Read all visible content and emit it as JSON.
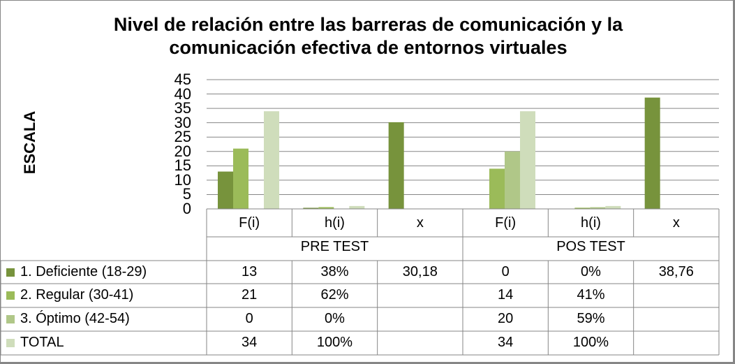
{
  "chart_data": {
    "type": "bar",
    "title_line1": "Nivel de relación entre las barreras de comunicación y la",
    "title_line2": "comunicación efectiva de entornos virtuales",
    "ylabel": "ESCALA",
    "xlabel": "",
    "ylim": [
      0,
      45
    ],
    "yticks": [
      "0",
      "5",
      "10",
      "15",
      "20",
      "25",
      "30",
      "35",
      "40",
      "45"
    ],
    "grid": true,
    "legend": "data-table-left",
    "categories": [
      "F(i)",
      "h(i)",
      "x",
      "F(i)",
      "h(i)",
      "x"
    ],
    "groups": [
      "PRE TEST",
      "POS TEST"
    ],
    "series": [
      {
        "name": "1. Deficiente (18-29)",
        "color": "#77933C",
        "values": [
          13,
          0.38,
          30.18,
          0,
          0,
          38.76
        ],
        "labels": [
          "13",
          "38%",
          "30,18",
          "0",
          "0%",
          "38,76"
        ]
      },
      {
        "name": "2. Regular (30-41)",
        "color": "#9BBB59",
        "values": [
          21,
          0.62,
          null,
          14,
          0.41,
          null
        ],
        "labels": [
          "21",
          "62%",
          "",
          "14",
          "41%",
          ""
        ]
      },
      {
        "name": "3. Óptimo (42-54)",
        "color": "#B0C788",
        "values": [
          0,
          0,
          null,
          20,
          0.59,
          null
        ],
        "labels": [
          "0",
          "0%",
          "",
          "20",
          "59%",
          ""
        ]
      },
      {
        "name": "TOTAL",
        "color": "#CFDDBB",
        "values": [
          34,
          1,
          null,
          34,
          1,
          null
        ],
        "labels": [
          "34",
          "100%",
          "",
          "34",
          "100%",
          ""
        ]
      }
    ]
  }
}
